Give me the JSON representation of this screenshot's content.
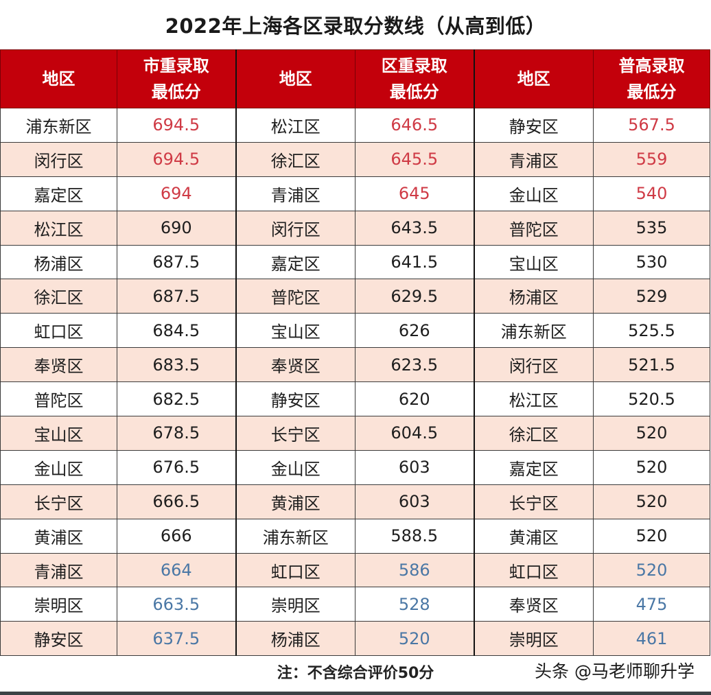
{
  "title": "2022年上海各区录取分数线（从高到低）",
  "colors": {
    "header_bg": "#c3000b",
    "stripe_bg": "#fbe3d8",
    "top_score_text": "#cf3a45",
    "bottom_score_text": "#4a77a5"
  },
  "table": {
    "headers": [
      {
        "line1": "地区",
        "line2": ""
      },
      {
        "line1": "市重录取",
        "line2": "最低分"
      },
      {
        "line1": "地区",
        "line2": ""
      },
      {
        "line1": "区重录取",
        "line2": "最低分"
      },
      {
        "line1": "地区",
        "line2": ""
      },
      {
        "line1": "普高录取",
        "line2": "最低分"
      }
    ],
    "rows": [
      {
        "d1": "浦东新区",
        "s1": "694.5",
        "d2": "松江区",
        "s2": "646.5",
        "d3": "静安区",
        "s3": "567.5"
      },
      {
        "d1": "闵行区",
        "s1": "694.5",
        "d2": "徐汇区",
        "s2": "645.5",
        "d3": "青浦区",
        "s3": "559"
      },
      {
        "d1": "嘉定区",
        "s1": "694",
        "d2": "青浦区",
        "s2": "645",
        "d3": "金山区",
        "s3": "540"
      },
      {
        "d1": "松江区",
        "s1": "690",
        "d2": "闵行区",
        "s2": "643.5",
        "d3": "普陀区",
        "s3": "535"
      },
      {
        "d1": "杨浦区",
        "s1": "687.5",
        "d2": "嘉定区",
        "s2": "641.5",
        "d3": "宝山区",
        "s3": "530"
      },
      {
        "d1": "徐汇区",
        "s1": "687.5",
        "d2": "普陀区",
        "s2": "629.5",
        "d3": "杨浦区",
        "s3": "529"
      },
      {
        "d1": "虹口区",
        "s1": "684.5",
        "d2": "宝山区",
        "s2": "626",
        "d3": "浦东新区",
        "s3": "525.5"
      },
      {
        "d1": "奉贤区",
        "s1": "683.5",
        "d2": "奉贤区",
        "s2": "623.5",
        "d3": "闵行区",
        "s3": "521.5"
      },
      {
        "d1": "普陀区",
        "s1": "682.5",
        "d2": "静安区",
        "s2": "620",
        "d3": "松江区",
        "s3": "520.5"
      },
      {
        "d1": "宝山区",
        "s1": "678.5",
        "d2": "长宁区",
        "s2": "604.5",
        "d3": "徐汇区",
        "s3": "520"
      },
      {
        "d1": "金山区",
        "s1": "676.5",
        "d2": "金山区",
        "s2": "603",
        "d3": "嘉定区",
        "s3": "520"
      },
      {
        "d1": "长宁区",
        "s1": "666.5",
        "d2": "黄浦区",
        "s2": "603",
        "d3": "长宁区",
        "s3": "520"
      },
      {
        "d1": "黄浦区",
        "s1": "666",
        "d2": "浦东新区",
        "s2": "588.5",
        "d3": "黄浦区",
        "s3": "520"
      },
      {
        "d1": "青浦区",
        "s1": "664",
        "d2": "虹口区",
        "s2": "586",
        "d3": "虹口区",
        "s3": "520"
      },
      {
        "d1": "崇明区",
        "s1": "663.5",
        "d2": "崇明区",
        "s2": "528",
        "d3": "奉贤区",
        "s3": "475"
      },
      {
        "d1": "静安区",
        "s1": "637.5",
        "d2": "杨浦区",
        "s2": "520",
        "d3": "崇明区",
        "s3": "461"
      }
    ]
  },
  "footer": {
    "note": "注：不含综合评价50分",
    "watermark": "头条 @马老师聊升学"
  }
}
